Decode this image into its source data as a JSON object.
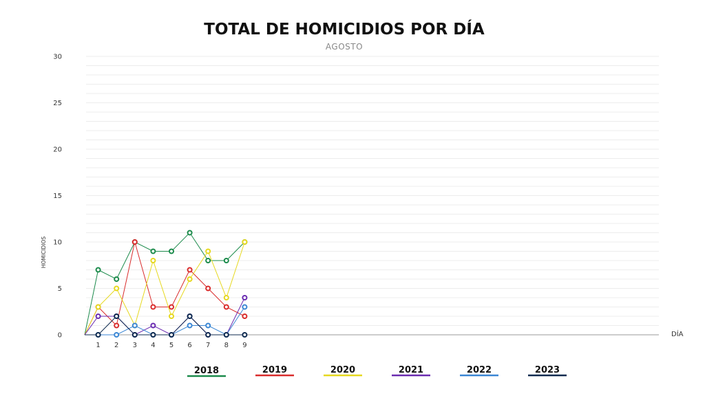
{
  "chart_data": {
    "type": "line",
    "title": "TOTAL DE HOMICIDIOS POR DÍA",
    "subtitle": "AGOSTO",
    "xlabel": "DÍA",
    "ylabel": "HOMICIDIOS",
    "x": [
      1,
      2,
      3,
      4,
      5,
      6,
      7,
      8,
      9
    ],
    "y_ticks": [
      "0",
      "5",
      "10",
      "15",
      "20",
      "25",
      "30"
    ],
    "ylim": [
      0,
      30
    ],
    "grid": true,
    "legend_position": "bottom",
    "series": [
      {
        "name": "2018",
        "color": "#1a8a4a",
        "values": [
          7,
          6,
          10,
          9,
          9,
          11,
          8,
          8,
          10
        ]
      },
      {
        "name": "2019",
        "color": "#d92b2b",
        "values": [
          3,
          1,
          10,
          3,
          3,
          7,
          5,
          3,
          2
        ]
      },
      {
        "name": "2020",
        "color": "#e6d81e",
        "values": [
          3,
          5,
          1,
          8,
          2,
          6,
          9,
          4,
          10
        ]
      },
      {
        "name": "2021",
        "color": "#6a2bb0",
        "values": [
          2,
          2,
          0,
          1,
          0,
          2,
          0,
          0,
          4
        ]
      },
      {
        "name": "2022",
        "color": "#3a86d4",
        "values": [
          0,
          0,
          1,
          0,
          0,
          1,
          1,
          0,
          3
        ]
      },
      {
        "name": "2023",
        "color": "#0e2a4f",
        "values": [
          0,
          2,
          0,
          0,
          0,
          2,
          0,
          0,
          0
        ]
      }
    ]
  }
}
